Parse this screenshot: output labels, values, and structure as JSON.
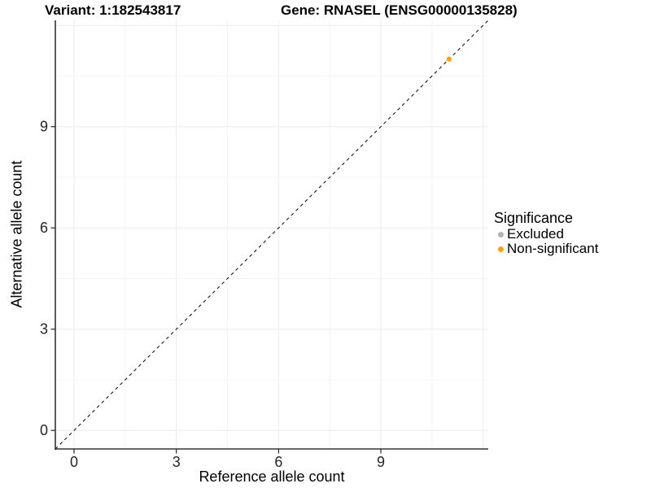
{
  "chart_data": {
    "type": "scatter",
    "title_left": "Variant: 1:182543817",
    "title_right": "Gene: RNASEL (ENSG00000135828)",
    "xlabel": "Reference allele count",
    "ylabel": "Alternative allele count",
    "xlim": [
      -0.55,
      12.15
    ],
    "ylim": [
      -0.55,
      12.15
    ],
    "x_breaks": [
      0,
      3,
      6,
      9
    ],
    "y_breaks": [
      0,
      3,
      6,
      9
    ],
    "major_gridlines": [
      0,
      3,
      6,
      9,
      12
    ],
    "minor_gridlines": [
      1.5,
      4.5,
      7.5,
      10.5
    ],
    "grid": true,
    "reference_line": {
      "slope": 1,
      "intercept": 0,
      "style": "dashed",
      "color": "#000000"
    },
    "series": [
      {
        "name": "Excluded",
        "color": "#B4B4B4",
        "points": []
      },
      {
        "name": "Non-significant",
        "color": "#FFA500",
        "points": [
          {
            "x": 11,
            "y": 11
          }
        ]
      }
    ],
    "legend": {
      "title": "Significance",
      "position": "right"
    }
  },
  "colors": {
    "background": "#FFFFFF",
    "axis_line": "#333333",
    "tick_mark": "#333333",
    "tick_label": "#262626",
    "grid_major": "#EBEBEB",
    "grid_minor": "#F4F4F4",
    "point_orange": "#FFA500",
    "point_gray": "#B4B4B4",
    "text": "#000000"
  }
}
